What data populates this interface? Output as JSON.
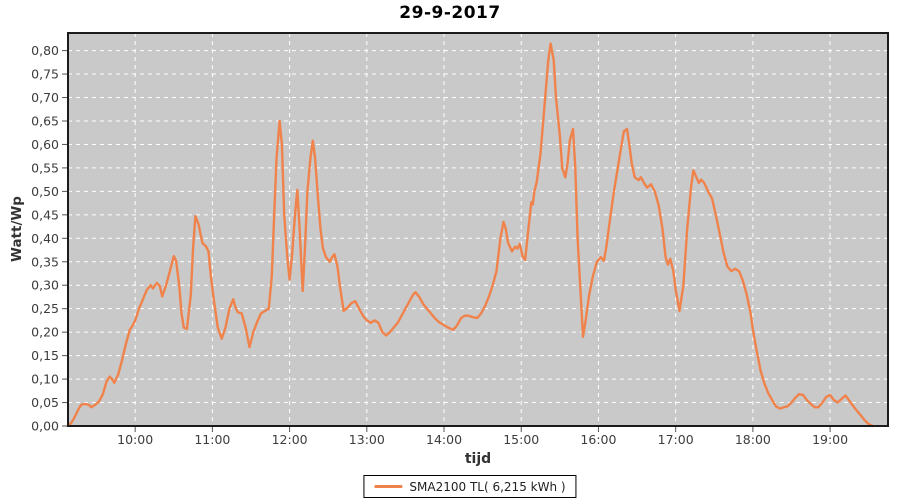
{
  "title": "29-9-2017",
  "legend": {
    "label": "SMA2100 TL( 6,215 kWh )"
  },
  "colors": {
    "series": "#F0824B",
    "plot_bg": "#C9C9C9",
    "grid": "#FFFFFF",
    "outer_bg": "#FFFFFF",
    "axis_frame": "#1B1B1B",
    "tick": "#555555",
    "tick_text": "#3D3D3D"
  },
  "chart_data": {
    "type": "line",
    "title": "29-9-2017",
    "xlabel": "tijd",
    "ylabel": "Watt/Wp",
    "x_domain": [
      9.13,
      19.75
    ],
    "ylim": [
      0,
      0.8375
    ],
    "grid": "white dashed, both axes",
    "legend_position": "bottom-center",
    "x_ticks": [
      [
        10,
        "10:00"
      ],
      [
        11,
        "11:00"
      ],
      [
        12,
        "12:00"
      ],
      [
        13,
        "13:00"
      ],
      [
        14,
        "14:00"
      ],
      [
        15,
        "15:00"
      ],
      [
        16,
        "16:00"
      ],
      [
        17,
        "17:00"
      ],
      [
        18,
        "18:00"
      ],
      [
        19,
        "19:00"
      ]
    ],
    "y_ticks": [
      [
        0.0,
        "0,00"
      ],
      [
        0.05,
        "0,05"
      ],
      [
        0.1,
        "0,10"
      ],
      [
        0.15,
        "0,15"
      ],
      [
        0.2,
        "0,20"
      ],
      [
        0.25,
        "0,25"
      ],
      [
        0.3,
        "0,30"
      ],
      [
        0.35,
        "0,35"
      ],
      [
        0.4,
        "0,40"
      ],
      [
        0.45,
        "0,45"
      ],
      [
        0.5,
        "0,50"
      ],
      [
        0.55,
        "0,55"
      ],
      [
        0.6,
        "0,60"
      ],
      [
        0.65,
        "0,65"
      ],
      [
        0.7,
        "0,70"
      ],
      [
        0.75,
        "0,75"
      ],
      [
        0.8,
        "0,80"
      ]
    ],
    "series": [
      {
        "name": "SMA2100 TL( 6,215 kWh )",
        "color": "#F0824B",
        "points": [
          [
            9.13,
            0.002
          ],
          [
            9.17,
            0.006
          ],
          [
            9.22,
            0.02
          ],
          [
            9.27,
            0.037
          ],
          [
            9.3,
            0.045
          ],
          [
            9.35,
            0.047
          ],
          [
            9.4,
            0.045
          ],
          [
            9.43,
            0.04
          ],
          [
            9.48,
            0.045
          ],
          [
            9.53,
            0.052
          ],
          [
            9.58,
            0.067
          ],
          [
            9.63,
            0.095
          ],
          [
            9.67,
            0.105
          ],
          [
            9.7,
            0.1
          ],
          [
            9.73,
            0.092
          ],
          [
            9.78,
            0.11
          ],
          [
            9.83,
            0.14
          ],
          [
            9.88,
            0.175
          ],
          [
            9.93,
            0.205
          ],
          [
            9.97,
            0.215
          ],
          [
            10.0,
            0.225
          ],
          [
            10.05,
            0.25
          ],
          [
            10.1,
            0.27
          ],
          [
            10.15,
            0.29
          ],
          [
            10.2,
            0.3
          ],
          [
            10.23,
            0.293
          ],
          [
            10.28,
            0.305
          ],
          [
            10.32,
            0.298
          ],
          [
            10.35,
            0.276
          ],
          [
            10.4,
            0.3
          ],
          [
            10.45,
            0.33
          ],
          [
            10.5,
            0.362
          ],
          [
            10.53,
            0.352
          ],
          [
            10.57,
            0.3
          ],
          [
            10.6,
            0.24
          ],
          [
            10.63,
            0.21
          ],
          [
            10.67,
            0.207
          ],
          [
            10.72,
            0.28
          ],
          [
            10.75,
            0.38
          ],
          [
            10.78,
            0.447
          ],
          [
            10.82,
            0.43
          ],
          [
            10.87,
            0.39
          ],
          [
            10.92,
            0.382
          ],
          [
            10.95,
            0.372
          ],
          [
            10.98,
            0.32
          ],
          [
            11.02,
            0.267
          ],
          [
            11.07,
            0.21
          ],
          [
            11.12,
            0.186
          ],
          [
            11.17,
            0.21
          ],
          [
            11.22,
            0.25
          ],
          [
            11.27,
            0.27
          ],
          [
            11.3,
            0.252
          ],
          [
            11.33,
            0.242
          ],
          [
            11.38,
            0.24
          ],
          [
            11.43,
            0.21
          ],
          [
            11.48,
            0.168
          ],
          [
            11.53,
            0.2
          ],
          [
            11.58,
            0.222
          ],
          [
            11.63,
            0.24
          ],
          [
            11.68,
            0.245
          ],
          [
            11.73,
            0.25
          ],
          [
            11.77,
            0.32
          ],
          [
            11.8,
            0.45
          ],
          [
            11.83,
            0.57
          ],
          [
            11.87,
            0.65
          ],
          [
            11.9,
            0.6
          ],
          [
            11.93,
            0.45
          ],
          [
            11.97,
            0.36
          ],
          [
            12.0,
            0.312
          ],
          [
            12.03,
            0.36
          ],
          [
            12.07,
            0.45
          ],
          [
            12.1,
            0.503
          ],
          [
            12.13,
            0.42
          ],
          [
            12.17,
            0.288
          ],
          [
            12.2,
            0.38
          ],
          [
            12.23,
            0.5
          ],
          [
            12.27,
            0.57
          ],
          [
            12.3,
            0.608
          ],
          [
            12.33,
            0.57
          ],
          [
            12.37,
            0.48
          ],
          [
            12.4,
            0.42
          ],
          [
            12.43,
            0.38
          ],
          [
            12.47,
            0.36
          ],
          [
            12.52,
            0.35
          ],
          [
            12.55,
            0.36
          ],
          [
            12.58,
            0.366
          ],
          [
            12.62,
            0.34
          ],
          [
            12.65,
            0.3
          ],
          [
            12.7,
            0.245
          ],
          [
            12.75,
            0.252
          ],
          [
            12.8,
            0.262
          ],
          [
            12.85,
            0.266
          ],
          [
            12.9,
            0.25
          ],
          [
            12.95,
            0.235
          ],
          [
            13.0,
            0.225
          ],
          [
            13.05,
            0.22
          ],
          [
            13.1,
            0.225
          ],
          [
            13.15,
            0.22
          ],
          [
            13.2,
            0.2
          ],
          [
            13.25,
            0.193
          ],
          [
            13.3,
            0.2
          ],
          [
            13.35,
            0.21
          ],
          [
            13.4,
            0.22
          ],
          [
            13.45,
            0.235
          ],
          [
            13.5,
            0.25
          ],
          [
            13.55,
            0.265
          ],
          [
            13.6,
            0.28
          ],
          [
            13.63,
            0.285
          ],
          [
            13.68,
            0.275
          ],
          [
            13.73,
            0.26
          ],
          [
            13.78,
            0.25
          ],
          [
            13.83,
            0.24
          ],
          [
            13.88,
            0.23
          ],
          [
            13.93,
            0.222
          ],
          [
            14.0,
            0.215
          ],
          [
            14.05,
            0.21
          ],
          [
            14.12,
            0.205
          ],
          [
            14.17,
            0.215
          ],
          [
            14.22,
            0.23
          ],
          [
            14.27,
            0.235
          ],
          [
            14.32,
            0.235
          ],
          [
            14.37,
            0.232
          ],
          [
            14.43,
            0.23
          ],
          [
            14.48,
            0.24
          ],
          [
            14.53,
            0.255
          ],
          [
            14.58,
            0.275
          ],
          [
            14.63,
            0.3
          ],
          [
            14.68,
            0.33
          ],
          [
            14.73,
            0.4
          ],
          [
            14.77,
            0.435
          ],
          [
            14.8,
            0.42
          ],
          [
            14.83,
            0.39
          ],
          [
            14.88,
            0.372
          ],
          [
            14.92,
            0.382
          ],
          [
            14.95,
            0.378
          ],
          [
            14.98,
            0.388
          ],
          [
            15.02,
            0.36
          ],
          [
            15.05,
            0.354
          ],
          [
            15.08,
            0.4
          ],
          [
            15.13,
            0.477
          ],
          [
            15.15,
            0.472
          ],
          [
            15.17,
            0.5
          ],
          [
            15.2,
            0.52
          ],
          [
            15.25,
            0.58
          ],
          [
            15.3,
            0.68
          ],
          [
            15.35,
            0.78
          ],
          [
            15.38,
            0.815
          ],
          [
            15.42,
            0.78
          ],
          [
            15.45,
            0.7
          ],
          [
            15.5,
            0.62
          ],
          [
            15.53,
            0.55
          ],
          [
            15.57,
            0.53
          ],
          [
            15.6,
            0.56
          ],
          [
            15.63,
            0.61
          ],
          [
            15.67,
            0.633
          ],
          [
            15.7,
            0.55
          ],
          [
            15.73,
            0.4
          ],
          [
            15.77,
            0.28
          ],
          [
            15.8,
            0.19
          ],
          [
            15.83,
            0.22
          ],
          [
            15.88,
            0.28
          ],
          [
            15.93,
            0.32
          ],
          [
            15.98,
            0.35
          ],
          [
            16.03,
            0.36
          ],
          [
            16.07,
            0.352
          ],
          [
            16.1,
            0.38
          ],
          [
            16.15,
            0.44
          ],
          [
            16.2,
            0.5
          ],
          [
            16.25,
            0.55
          ],
          [
            16.3,
            0.6
          ],
          [
            16.33,
            0.628
          ],
          [
            16.37,
            0.633
          ],
          [
            16.4,
            0.6
          ],
          [
            16.43,
            0.56
          ],
          [
            16.47,
            0.53
          ],
          [
            16.52,
            0.524
          ],
          [
            16.55,
            0.53
          ],
          [
            16.6,
            0.515
          ],
          [
            16.63,
            0.508
          ],
          [
            16.68,
            0.515
          ],
          [
            16.73,
            0.5
          ],
          [
            16.78,
            0.47
          ],
          [
            16.83,
            0.42
          ],
          [
            16.87,
            0.36
          ],
          [
            16.9,
            0.344
          ],
          [
            16.93,
            0.356
          ],
          [
            16.97,
            0.33
          ],
          [
            17.0,
            0.29
          ],
          [
            17.05,
            0.245
          ],
          [
            17.1,
            0.3
          ],
          [
            17.15,
            0.42
          ],
          [
            17.2,
            0.51
          ],
          [
            17.23,
            0.545
          ],
          [
            17.27,
            0.53
          ],
          [
            17.3,
            0.518
          ],
          [
            17.33,
            0.525
          ],
          [
            17.37,
            0.518
          ],
          [
            17.42,
            0.5
          ],
          [
            17.47,
            0.485
          ],
          [
            17.52,
            0.45
          ],
          [
            17.57,
            0.41
          ],
          [
            17.62,
            0.37
          ],
          [
            17.67,
            0.34
          ],
          [
            17.72,
            0.33
          ],
          [
            17.77,
            0.335
          ],
          [
            17.82,
            0.33
          ],
          [
            17.87,
            0.31
          ],
          [
            17.92,
            0.28
          ],
          [
            17.97,
            0.24
          ],
          [
            18.0,
            0.205
          ],
          [
            18.05,
            0.16
          ],
          [
            18.1,
            0.118
          ],
          [
            18.15,
            0.09
          ],
          [
            18.2,
            0.07
          ],
          [
            18.25,
            0.055
          ],
          [
            18.3,
            0.042
          ],
          [
            18.35,
            0.037
          ],
          [
            18.4,
            0.04
          ],
          [
            18.45,
            0.042
          ],
          [
            18.5,
            0.05
          ],
          [
            18.55,
            0.06
          ],
          [
            18.6,
            0.068
          ],
          [
            18.65,
            0.066
          ],
          [
            18.7,
            0.055
          ],
          [
            18.75,
            0.047
          ],
          [
            18.8,
            0.04
          ],
          [
            18.85,
            0.04
          ],
          [
            18.9,
            0.05
          ],
          [
            18.95,
            0.062
          ],
          [
            19.0,
            0.066
          ],
          [
            19.05,
            0.055
          ],
          [
            19.1,
            0.05
          ],
          [
            19.15,
            0.058
          ],
          [
            19.2,
            0.065
          ],
          [
            19.25,
            0.054
          ],
          [
            19.3,
            0.042
          ],
          [
            19.35,
            0.032
          ],
          [
            19.4,
            0.022
          ],
          [
            19.45,
            0.012
          ],
          [
            19.5,
            0.004
          ],
          [
            19.55,
            0.0
          ]
        ]
      }
    ]
  }
}
